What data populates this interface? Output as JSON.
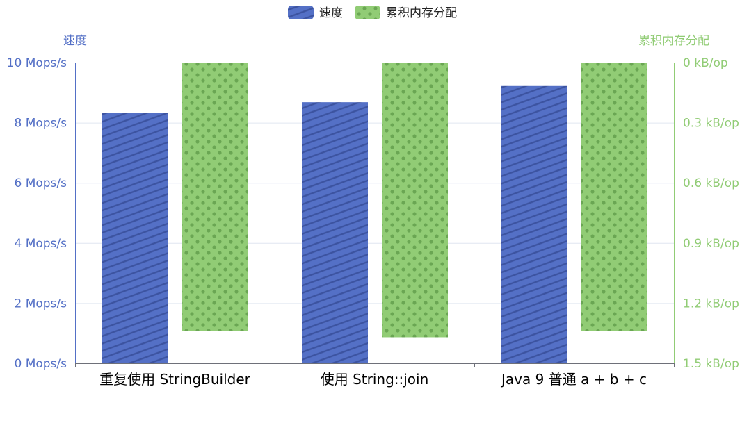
{
  "chart_data": {
    "type": "bar",
    "categories": [
      "重复使用 StringBuilder",
      "使用 String::join",
      "Java 9 普通 a + b + c"
    ],
    "series": [
      {
        "name": "速度",
        "axis": "left",
        "unit": "Mops/s",
        "color": "#5470c6",
        "pattern": "diagonal-stripes",
        "values": [
          8.33,
          8.68,
          9.22
        ]
      },
      {
        "name": "累积内存分配",
        "axis": "right",
        "unit": "kB/op",
        "color": "#91cc75",
        "pattern": "dots",
        "values": [
          1.34,
          1.37,
          1.34
        ]
      }
    ],
    "y_left": {
      "title": "速度",
      "min": 0,
      "max": 10,
      "ticks": [
        "0 Mops/s",
        "2 Mops/s",
        "4 Mops/s",
        "6 Mops/s",
        "8 Mops/s",
        "10 Mops/s"
      ]
    },
    "y_right": {
      "title": "累积内存分配",
      "min": 0,
      "max": 1.5,
      "inverted": true,
      "ticks": [
        "0 kB/op",
        "0.3 kB/op",
        "0.6 kB/op",
        "0.9 kB/op",
        "1.2 kB/op",
        "1.5 kB/op"
      ]
    },
    "grid": true,
    "legend_position": "top-center"
  }
}
